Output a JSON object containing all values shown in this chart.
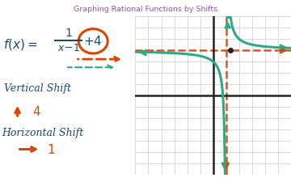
{
  "title": "Graphing Rational Functions by Shifts",
  "title_color": "#aa44cc",
  "bg_color": "#ffffff",
  "grid_color": "#cccccc",
  "axis_color": "#222222",
  "green_color": "#2aaa88",
  "orange_color": "#dd4400",
  "text_color": "#1a4a6b",
  "graph_xlim": [
    -6,
    6
  ],
  "graph_ylim": [
    -7,
    7
  ],
  "vertical_asymptote": 1,
  "horizontal_asymptote": 4,
  "figsize": [
    3.6,
    2.25
  ],
  "dpi": 100
}
